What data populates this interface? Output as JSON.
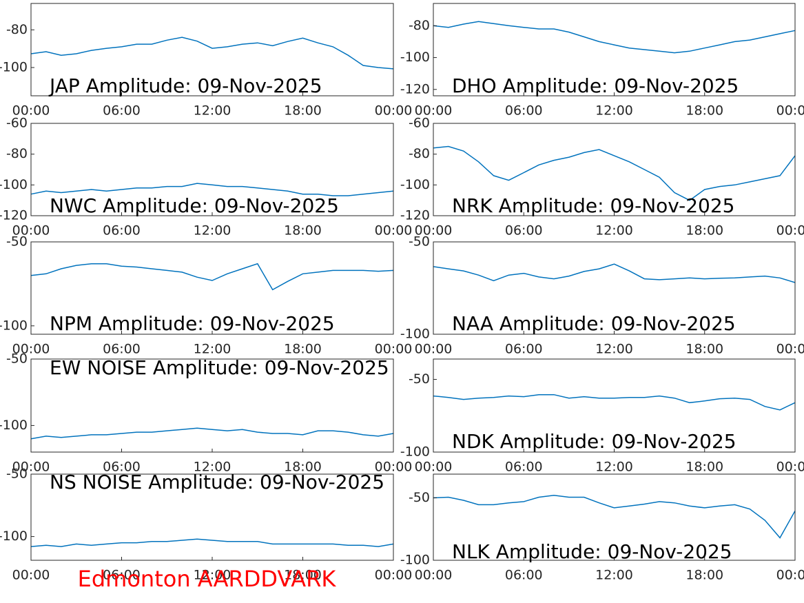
{
  "chart_data": [
    {
      "type": "line",
      "title": "JAP Amplitude: 09-Nov-2025",
      "x": [
        0,
        1,
        2,
        3,
        4,
        5,
        6,
        7,
        8,
        9,
        10,
        11,
        12,
        13,
        14,
        15,
        16,
        17,
        18,
        19,
        20,
        21,
        22,
        23,
        24
      ],
      "series": [
        {
          "color": "#0072bd",
          "values": [
            -92.7,
            -91.6,
            -93.5,
            -92.7,
            -90.9,
            -89.8,
            -89,
            -87.6,
            -87.6,
            -85.5,
            -84,
            -86,
            -89.8,
            -89,
            -87.6,
            -86.9,
            -88.4,
            -86.2,
            -84.4,
            -86.9,
            -89,
            -93.5,
            -98.9,
            -100,
            -100.7
          ]
        }
      ],
      "xlim": [
        0,
        24
      ],
      "xticks": [
        {
          "value": 0,
          "label": "00:00"
        },
        {
          "value": 6,
          "label": "06:00"
        },
        {
          "value": 12,
          "label": "12:00"
        },
        {
          "value": 18,
          "label": "18:00"
        },
        {
          "value": 24,
          "label": "00:00"
        }
      ],
      "ylim": [
        -115,
        -66
      ],
      "yticks": [
        -100,
        -80
      ]
    },
    {
      "type": "line",
      "title": "DHO Amplitude: 09-Nov-2025",
      "x": [
        0,
        1,
        2,
        3,
        4,
        5,
        6,
        7,
        8,
        9,
        10,
        11,
        12,
        13,
        14,
        15,
        16,
        17,
        18,
        19,
        20,
        21,
        22,
        23,
        24
      ],
      "series": [
        {
          "color": "#0072bd",
          "values": [
            -80,
            -81,
            -79,
            -77.4,
            -78.7,
            -80,
            -81,
            -82,
            -82,
            -84,
            -87,
            -90,
            -92,
            -94,
            -95,
            -96,
            -97,
            -96,
            -94,
            -92,
            -90,
            -89,
            -87,
            -85,
            -83
          ]
        }
      ],
      "xlim": [
        0,
        24
      ],
      "xticks": [
        {
          "value": 0,
          "label": "00:00"
        },
        {
          "value": 6,
          "label": "06:00"
        },
        {
          "value": 12,
          "label": "12:00"
        },
        {
          "value": 18,
          "label": "18:00"
        },
        {
          "value": 24,
          "label": "00:00"
        }
      ],
      "ylim": [
        -124,
        -66
      ],
      "yticks": [
        -120,
        -100,
        -80
      ]
    },
    {
      "type": "line",
      "title": "NWC Amplitude: 09-Nov-2025",
      "x": [
        0,
        1,
        2,
        3,
        4,
        5,
        6,
        7,
        8,
        9,
        10,
        11,
        12,
        13,
        14,
        15,
        16,
        17,
        18,
        19,
        20,
        21,
        22,
        23,
        24
      ],
      "series": [
        {
          "color": "#0072bd",
          "values": [
            -106,
            -104,
            -105,
            -104,
            -103,
            -104,
            -103,
            -102,
            -102,
            -101,
            -101,
            -99,
            -100,
            -101,
            -101,
            -102,
            -103,
            -104,
            -106,
            -106,
            -107,
            -107,
            -106,
            -105,
            -104
          ]
        }
      ],
      "xlim": [
        0,
        24
      ],
      "xticks": [
        {
          "value": 0,
          "label": "00:00"
        },
        {
          "value": 6,
          "label": "06:00"
        },
        {
          "value": 12,
          "label": "12:00"
        },
        {
          "value": 18,
          "label": "18:00"
        },
        {
          "value": 24,
          "label": "00:00"
        }
      ],
      "ylim": [
        -120,
        -60
      ],
      "yticks": [
        -120,
        -100,
        -80,
        -60
      ]
    },
    {
      "type": "line",
      "title": "NRK Amplitude: 09-Nov-2025",
      "x": [
        0,
        1,
        2,
        3,
        4,
        5,
        6,
        7,
        8,
        9,
        10,
        11,
        12,
        13,
        14,
        15,
        16,
        17,
        18,
        19,
        20,
        21,
        22,
        23,
        24
      ],
      "series": [
        {
          "color": "#0072bd",
          "values": [
            -76,
            -75,
            -78,
            -85,
            -94,
            -97,
            -92,
            -87,
            -84,
            -82,
            -79,
            -77,
            -81,
            -85,
            -90,
            -95,
            -105,
            -110,
            -103,
            -101,
            -100,
            -98,
            -96,
            -94,
            -81
          ]
        }
      ],
      "xlim": [
        0,
        24
      ],
      "xticks": [
        {
          "value": 0,
          "label": "00:00"
        },
        {
          "value": 6,
          "label": "06:00"
        },
        {
          "value": 12,
          "label": "12:00"
        },
        {
          "value": 18,
          "label": "18:00"
        },
        {
          "value": 24,
          "label": "00:00"
        }
      ],
      "ylim": [
        -120,
        -60
      ],
      "yticks": [
        -120,
        -100,
        -80,
        -60
      ]
    },
    {
      "type": "line",
      "title": "NPM Amplitude: 09-Nov-2025",
      "x": [
        0,
        1,
        2,
        3,
        4,
        5,
        6,
        7,
        8,
        9,
        10,
        11,
        12,
        13,
        14,
        15,
        16,
        17,
        18,
        19,
        20,
        21,
        22,
        23,
        24
      ],
      "series": [
        {
          "color": "#0072bd",
          "values": [
            -70,
            -69,
            -66,
            -64,
            -63,
            -63,
            -64.5,
            -65,
            -66,
            -67,
            -68,
            -71,
            -73,
            -69,
            -66,
            -63,
            -78.5,
            -73.5,
            -69,
            -68,
            -67,
            -67,
            -67,
            -67.5,
            -67
          ]
        }
      ],
      "xlim": [
        0,
        24
      ],
      "xticks": [
        {
          "value": 0,
          "label": "00:00"
        },
        {
          "value": 6,
          "label": "06:00"
        },
        {
          "value": 12,
          "label": "12:00"
        },
        {
          "value": 18,
          "label": "18:00"
        },
        {
          "value": 24,
          "label": "00:00"
        }
      ],
      "ylim": [
        -105,
        -50
      ],
      "yticks": [
        -100,
        -50
      ]
    },
    {
      "type": "line",
      "title": "NAA Amplitude: 09-Nov-2025",
      "x": [
        0,
        1,
        2,
        3,
        4,
        5,
        6,
        7,
        8,
        9,
        10,
        11,
        12,
        13,
        14,
        15,
        16,
        17,
        18,
        19,
        20,
        21,
        22,
        23,
        24
      ],
      "series": [
        {
          "color": "#0072bd",
          "values": [
            -63.4,
            -64.6,
            -65.7,
            -68,
            -71,
            -68,
            -67,
            -69,
            -70,
            -68.5,
            -66,
            -64.6,
            -62,
            -65.7,
            -70,
            -70.5,
            -70,
            -69.5,
            -70,
            -69.7,
            -69.5,
            -69,
            -68.5,
            -69.5,
            -72
          ]
        }
      ],
      "xlim": [
        0,
        24
      ],
      "xticks": [
        {
          "value": 0,
          "label": "00:00"
        },
        {
          "value": 6,
          "label": "06:00"
        },
        {
          "value": 12,
          "label": "12:00"
        },
        {
          "value": 18,
          "label": "18:00"
        },
        {
          "value": 24,
          "label": "00:00"
        }
      ],
      "ylim": [
        -100,
        -50
      ],
      "yticks": [
        -100,
        -50
      ]
    },
    {
      "type": "line",
      "title": "EW NOISE Amplitude: 09-Nov-2025",
      "x": [
        0,
        1,
        2,
        3,
        4,
        5,
        6,
        7,
        8,
        9,
        10,
        11,
        12,
        13,
        14,
        15,
        16,
        17,
        18,
        19,
        20,
        21,
        22,
        23,
        24
      ],
      "series": [
        {
          "color": "#0072bd",
          "values": [
            -110,
            -108,
            -109,
            -108,
            -107,
            -107,
            -106,
            -105,
            -105,
            -104,
            -103,
            -102,
            -103,
            -104,
            -103,
            -105,
            -106,
            -106,
            -107,
            -104,
            -104,
            -105,
            -107,
            -108,
            -106
          ]
        }
      ],
      "xlim": [
        0,
        24
      ],
      "xticks": [
        {
          "value": 0,
          "label": "00:00"
        },
        {
          "value": 6,
          "label": "06:00"
        },
        {
          "value": 12,
          "label": "12:00"
        },
        {
          "value": 18,
          "label": "18:00"
        },
        {
          "value": 24,
          "label": "00:00"
        }
      ],
      "ylim": [
        -120,
        -50
      ],
      "yticks": [
        -100,
        -50
      ]
    },
    {
      "type": "line",
      "title": "NDK Amplitude: 09-Nov-2025",
      "x": [
        0,
        1,
        2,
        3,
        4,
        5,
        6,
        7,
        8,
        9,
        10,
        11,
        12,
        13,
        14,
        15,
        16,
        17,
        18,
        19,
        20,
        21,
        22,
        23,
        24
      ],
      "series": [
        {
          "color": "#0072bd",
          "values": [
            -61.4,
            -62.4,
            -63.8,
            -62.9,
            -62.4,
            -61.4,
            -61.9,
            -60.5,
            -60.5,
            -62.9,
            -61.9,
            -62.9,
            -62.9,
            -62.4,
            -62.4,
            -61.4,
            -62.9,
            -66,
            -64.8,
            -63.3,
            -62.9,
            -63.8,
            -68.6,
            -71,
            -66
          ]
        }
      ],
      "xlim": [
        0,
        24
      ],
      "xticks": [
        {
          "value": 0,
          "label": "00:00"
        },
        {
          "value": 6,
          "label": "06:00"
        },
        {
          "value": 12,
          "label": "12:00"
        },
        {
          "value": 18,
          "label": "18:00"
        },
        {
          "value": 24,
          "label": "00:00"
        }
      ],
      "ylim": [
        -100,
        -36
      ],
      "yticks": [
        -100,
        -50
      ]
    },
    {
      "type": "line",
      "title": "NS NOISE Amplitude: 09-Nov-2025",
      "x": [
        0,
        1,
        2,
        3,
        4,
        5,
        6,
        7,
        8,
        9,
        10,
        11,
        12,
        13,
        14,
        15,
        16,
        17,
        18,
        19,
        20,
        21,
        22,
        23,
        24
      ],
      "series": [
        {
          "color": "#0072bd",
          "values": [
            -108,
            -107,
            -108,
            -106,
            -107,
            -106,
            -105,
            -105,
            -104,
            -104,
            -103,
            -102,
            -103,
            -104,
            -104,
            -104,
            -106,
            -106,
            -106,
            -106,
            -106,
            -107,
            -107,
            -108,
            -106
          ]
        }
      ],
      "xlim": [
        0,
        24
      ],
      "xticks": [
        {
          "value": 0,
          "label": "00:00"
        },
        {
          "value": 6,
          "label": "06:00"
        },
        {
          "value": 12,
          "label": "12:00"
        },
        {
          "value": 18,
          "label": "18:00"
        },
        {
          "value": 24,
          "label": "00:00"
        }
      ],
      "ylim": [
        -119,
        -50
      ],
      "yticks": [
        -100,
        -50
      ]
    },
    {
      "type": "line",
      "title": "NLK Amplitude: 09-Nov-2025",
      "x": [
        0,
        1,
        2,
        3,
        4,
        5,
        6,
        7,
        8,
        9,
        10,
        11,
        12,
        13,
        14,
        15,
        16,
        17,
        18,
        19,
        20,
        21,
        22,
        23,
        24
      ],
      "series": [
        {
          "color": "#0072bd",
          "values": [
            -50,
            -49.5,
            -52,
            -55.5,
            -55.5,
            -54,
            -53,
            -49.5,
            -48,
            -49.5,
            -49.5,
            -54,
            -58,
            -56.5,
            -55,
            -53,
            -54,
            -56.5,
            -58,
            -56.5,
            -55.5,
            -59,
            -68,
            -82,
            -60.5
          ]
        }
      ],
      "xlim": [
        0,
        24
      ],
      "xticks": [
        {
          "value": 0,
          "label": "00:00"
        },
        {
          "value": 6,
          "label": "06:00"
        },
        {
          "value": 12,
          "label": "12:00"
        },
        {
          "value": 18,
          "label": "18:00"
        },
        {
          "value": 24,
          "label": "00:00"
        }
      ],
      "ylim": [
        -100,
        -31
      ],
      "yticks": [
        -100,
        -50
      ]
    }
  ],
  "footer": "Edmonton AARDDVARK"
}
